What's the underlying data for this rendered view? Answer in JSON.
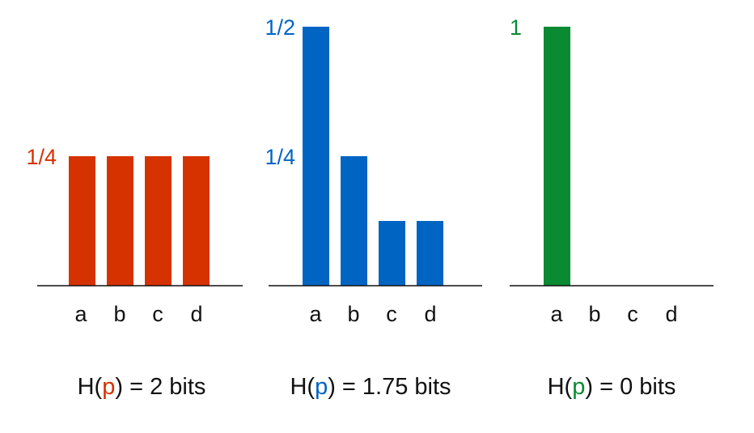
{
  "chart_data": [
    {
      "type": "bar",
      "categories": [
        "a",
        "b",
        "c",
        "d"
      ],
      "values": [
        0.25,
        0.25,
        0.25,
        0.25
      ],
      "ylim": [
        0,
        0.5
      ],
      "y_tick_labels": [
        {
          "value": 0.25,
          "label": "1/4"
        }
      ],
      "color": "#d63200",
      "caption": {
        "prefix": "H(",
        "var": "p",
        "suffix": ") = 2 bits"
      }
    },
    {
      "type": "bar",
      "categories": [
        "a",
        "b",
        "c",
        "d"
      ],
      "values": [
        0.5,
        0.25,
        0.125,
        0.125
      ],
      "ylim": [
        0,
        0.5
      ],
      "y_tick_labels": [
        {
          "value": 0.5,
          "label": "1/2"
        },
        {
          "value": 0.25,
          "label": "1/4"
        }
      ],
      "color": "#0064c3",
      "caption": {
        "prefix": "H(",
        "var": "p",
        "suffix": ") = 1.75 bits"
      }
    },
    {
      "type": "bar",
      "categories": [
        "a",
        "b",
        "c",
        "d"
      ],
      "values": [
        1,
        0,
        0,
        0
      ],
      "ylim": [
        0,
        1
      ],
      "y_tick_labels": [
        {
          "value": 1,
          "label": "1"
        }
      ],
      "color": "#0a8a32",
      "caption": {
        "prefix": "H(",
        "var": "p",
        "suffix": ") = 0 bits"
      }
    }
  ]
}
